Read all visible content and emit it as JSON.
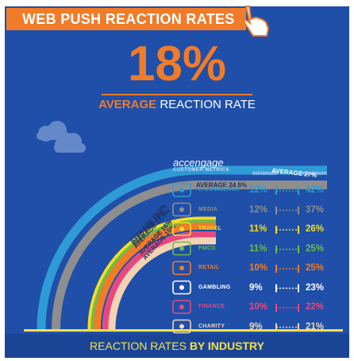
{
  "header": {
    "title": "WEB PUSH REACTION RATES"
  },
  "headline": {
    "value": "18%",
    "label_bold": "AVERAGE",
    "label_rest": "REACTION RATE"
  },
  "brand": {
    "name": "accengage",
    "tagline": "CUSTOMER METRICS"
  },
  "table": {
    "min_header": "minimum",
    "max_header": "maximum"
  },
  "footer": {
    "label_start": "REACTION RATES",
    "label_bold": "BY INDUSTRY"
  },
  "colors": {
    "background": "#1f4fa8",
    "accent": "#f07b28"
  },
  "chart_data": {
    "type": "bar",
    "title": "WEB PUSH REACTION RATES",
    "overall_average": {
      "label": "AVERAGE REACTION RATE",
      "value": 18
    },
    "arcs": [
      {
        "label": "AVERAGE",
        "value_text": "27%",
        "value": 27,
        "color": "#2f9bd6"
      },
      {
        "label": "AVERAGE",
        "value_text": "24.5%",
        "value": 24.5,
        "color": "#8e8e8e"
      },
      {
        "label": "AVERAGE",
        "value_text": "18.5%",
        "value": 18.5,
        "color": "#f2dd2a"
      },
      {
        "label": "AVERAGE",
        "value_text": "18%",
        "value": 18,
        "color": "#6dbd45"
      },
      {
        "label": "AVERAGE",
        "value_text": "17.5%",
        "value": 17.5,
        "color": "#f07b28"
      },
      {
        "label": "AVERAGE",
        "value_text": "16%",
        "value": 16,
        "color": "#ffffff"
      },
      {
        "label": "AVERAGE",
        "value_text": "16%",
        "value": 16,
        "color": "#e8487e"
      },
      {
        "label": "AVERAGE",
        "value_text": "15%",
        "value": 15,
        "color": "#f4d3b5"
      }
    ],
    "industries": [
      {
        "name": "E-COMMERCE",
        "icon": "cart-icon",
        "min": 12,
        "max": 42,
        "color": "#2f9bd6"
      },
      {
        "name": "MEDIA",
        "icon": "monitor-icon",
        "min": 12,
        "max": 37,
        "color": "#8e8e8e"
      },
      {
        "name": "TRAVEL",
        "icon": "plane-icon",
        "min": 11,
        "max": 26,
        "color": "#f2dd2a"
      },
      {
        "name": "FMCG",
        "icon": "product-icon",
        "min": 11,
        "max": 25,
        "color": "#6dbd45"
      },
      {
        "name": "RETAIL",
        "icon": "bag-icon",
        "min": 10,
        "max": 25,
        "color": "#f07b28"
      },
      {
        "name": "GAMBLING",
        "icon": "dice-icon",
        "min": 9,
        "max": 23,
        "color": "#ffffff"
      },
      {
        "name": "FINANCE",
        "icon": "piggybank-icon",
        "min": 10,
        "max": 22,
        "color": "#e8487e"
      },
      {
        "name": "CHARITY",
        "icon": "handshake-icon",
        "min": 9,
        "max": 21,
        "color": "#f4d3b5"
      }
    ]
  }
}
